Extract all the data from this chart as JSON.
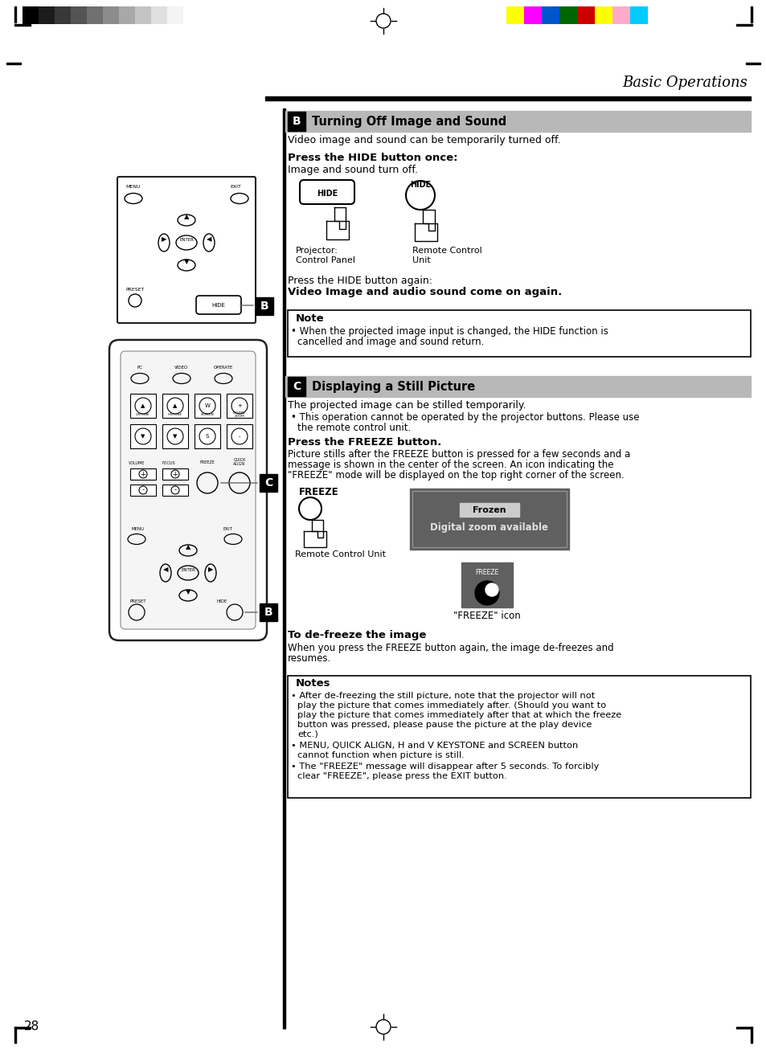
{
  "page_bg": "#ffffff",
  "title_italic": "Basic Operations",
  "section_b_title": "Turning Off Image and Sound",
  "section_c_title": "Displaying a Still Picture",
  "section_b_label": "B",
  "section_c_label": "C",
  "header_bg": "#b8b8b8",
  "label_bg": "#000000",
  "label_text_color": "#ffffff",
  "black_bar_color": "#000000",
  "frozen_box_bg": "#606060",
  "frozen_label_bg": "#cccccc",
  "freeze_icon_bg": "#606060",
  "gray_bar_colors": [
    "#000000",
    "#1c1c1c",
    "#383838",
    "#545454",
    "#707070",
    "#8c8c8c",
    "#a8a8a8",
    "#c4c4c4",
    "#e0e0e0",
    "#f4f4f4",
    "#ffffff"
  ],
  "color_bar": [
    "#ffff00",
    "#ff00ff",
    "#0055cc",
    "#006600",
    "#cc0000",
    "#ffff00",
    "#ffaacc",
    "#00ccff"
  ]
}
